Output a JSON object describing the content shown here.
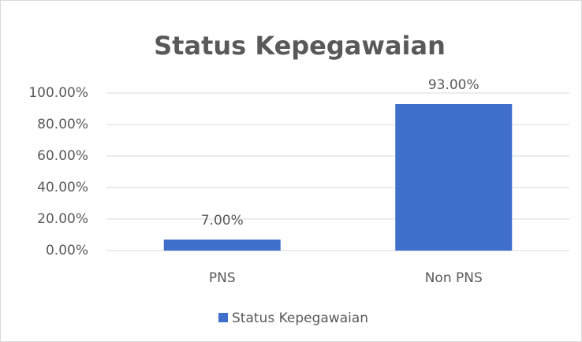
{
  "chart_data": {
    "type": "bar",
    "title": "Status Kepegawaian",
    "categories": [
      "PNS",
      "Non PNS"
    ],
    "series": [
      {
        "name": "Status Kepegawaian",
        "color": "#3f6fca",
        "values": [
          7,
          93
        ],
        "value_labels": [
          "7.00%",
          "93.00%"
        ]
      }
    ],
    "ylim": [
      0,
      100
    ],
    "yticks": [
      {
        "value": 0,
        "label": "0.00%"
      },
      {
        "value": 20,
        "label": "20.00%"
      },
      {
        "value": 40,
        "label": "40.00%"
      },
      {
        "value": 60,
        "label": "60.00%"
      },
      {
        "value": 80,
        "label": "80.00%"
      },
      {
        "value": 100,
        "label": "100.00%"
      }
    ],
    "grid": true,
    "legend": "bottom"
  }
}
